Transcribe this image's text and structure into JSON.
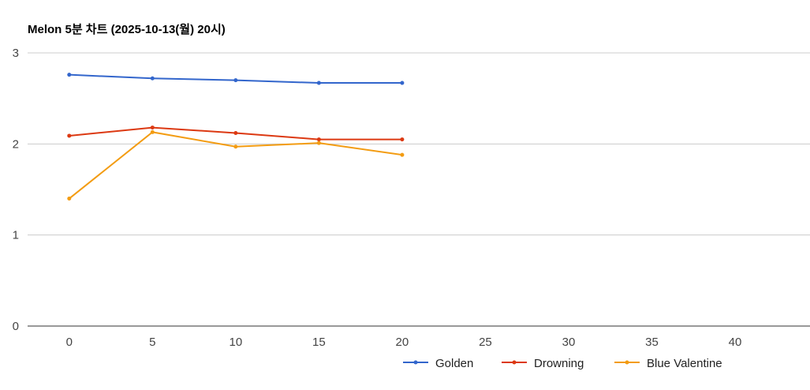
{
  "chart_data": {
    "type": "line",
    "title": "Melon 5분 차트 (2025-10-13(월) 20시)",
    "xlabel": "",
    "ylabel": "",
    "x": [
      0,
      5,
      10,
      15,
      20
    ],
    "xticks": [
      0,
      5,
      10,
      15,
      20,
      25,
      30,
      35,
      40
    ],
    "yticks": [
      0,
      1,
      2,
      3
    ],
    "xlim": [
      -2.5,
      44.5
    ],
    "ylim": [
      0,
      3
    ],
    "grid": true,
    "legend_position": "bottom",
    "series": [
      {
        "name": "Golden",
        "color": "#3366cc",
        "values": [
          2.76,
          2.72,
          2.7,
          2.67,
          2.67
        ]
      },
      {
        "name": "Drowning",
        "color": "#dc3912",
        "values": [
          2.09,
          2.18,
          2.12,
          2.05,
          2.05
        ]
      },
      {
        "name": "Blue Valentine",
        "color": "#f39c12",
        "values": [
          1.4,
          2.13,
          1.97,
          2.01,
          1.88
        ]
      }
    ]
  }
}
